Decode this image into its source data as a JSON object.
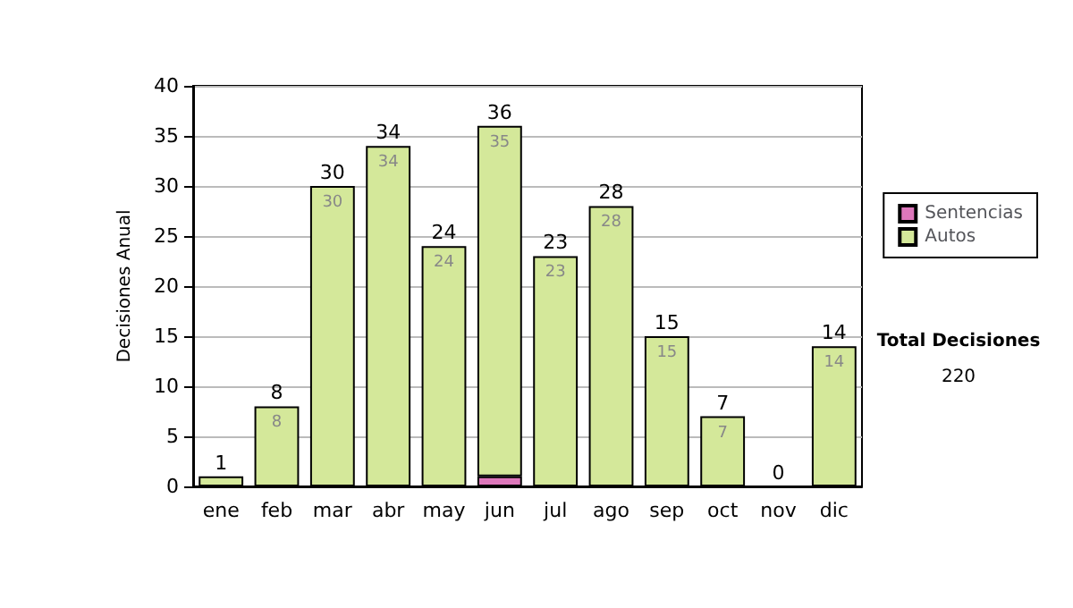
{
  "chart_data": {
    "type": "bar",
    "stacked": true,
    "ylabel": "Decisiones Anual",
    "categories": [
      "ene",
      "feb",
      "mar",
      "abr",
      "may",
      "jun",
      "jul",
      "ago",
      "sep",
      "oct",
      "nov",
      "dic"
    ],
    "series": [
      {
        "name": "Sentencias",
        "color": "#dd77bb",
        "values": [
          0,
          0,
          0,
          0,
          0,
          1,
          0,
          0,
          0,
          0,
          0,
          0
        ]
      },
      {
        "name": "Autos",
        "color": "#d4e89a",
        "values": [
          1,
          8,
          30,
          34,
          24,
          35,
          23,
          28,
          15,
          7,
          0,
          14
        ],
        "value_labels": [
          null,
          "8",
          "30",
          "34",
          "24",
          "35",
          "23",
          "28",
          "15",
          "7",
          null,
          "14"
        ]
      }
    ],
    "totals": [
      "1",
      "8",
      "30",
      "34",
      "24",
      "36",
      "23",
      "28",
      "15",
      "7",
      "0",
      "14"
    ],
    "ylim": [
      0,
      40
    ],
    "yticks": [
      0,
      5,
      10,
      15,
      20,
      25,
      30,
      35,
      40
    ],
    "grid": "y",
    "legend": "right",
    "annotations": [
      "Total Decisiones",
      "220"
    ]
  }
}
